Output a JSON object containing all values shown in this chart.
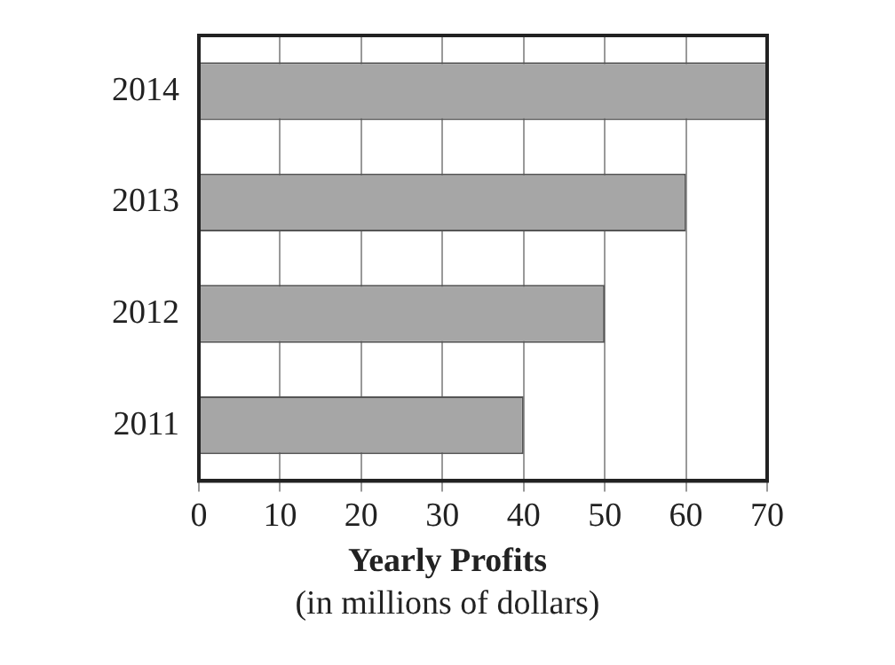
{
  "chart_data": {
    "type": "bar",
    "orientation": "horizontal",
    "categories": [
      "2014",
      "2013",
      "2012",
      "2011"
    ],
    "values": [
      70,
      60,
      50,
      40
    ],
    "color": "#a6a6a6",
    "xlim": [
      0,
      70
    ],
    "xticks": [
      0,
      10,
      20,
      30,
      40,
      50,
      60,
      70
    ],
    "grid": "x",
    "legend": false,
    "xlabel": "Yearly Profits",
    "annotations": [
      "(in millions of dollars)"
    ]
  }
}
